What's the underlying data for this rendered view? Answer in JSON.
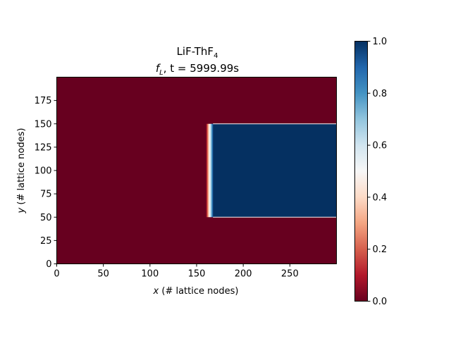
{
  "chart_data": {
    "type": "heatmap",
    "title": {
      "line1_main": "LiF-ThF",
      "line1_sub": "4",
      "line2_main": "f",
      "line2_sub": "L",
      "line2_rest": ", t = 5999.99s"
    },
    "xlabel": {
      "var": "x",
      "text": " (# lattice nodes)"
    },
    "ylabel": {
      "var": "y",
      "text": " (# lattice nodes)"
    },
    "xlim": [
      0,
      300
    ],
    "ylim": [
      0,
      200
    ],
    "xticks": [
      0,
      50,
      100,
      150,
      200,
      250
    ],
    "yticks": [
      0,
      25,
      50,
      75,
      100,
      125,
      150,
      175
    ],
    "colorbar": {
      "min": 0.0,
      "max": 1.0,
      "ticks": [
        "0.0",
        "0.2",
        "0.4",
        "0.6",
        "0.8",
        "1.0"
      ],
      "colormap": "RdBu",
      "low_color": "#67001f",
      "high_color": "#053061"
    },
    "field": {
      "background_value": 0.0,
      "liquid_region": {
        "x_from": 166,
        "x_to": 300,
        "y_from": 50,
        "y_to": 150,
        "value": 1.0
      },
      "interface_x": 160,
      "interface_width": 8
    }
  }
}
